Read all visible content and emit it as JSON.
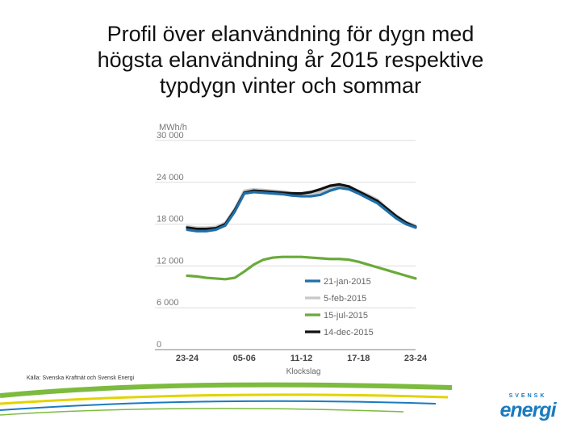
{
  "title_lines": [
    "Profil över elanvändning för dygn med",
    "högsta elanvändning år 2015 respektive",
    "typdygn vinter och sommar"
  ],
  "source_note": "Källa: Svenska Kraftnät och Svensk Energi",
  "logo": {
    "top": "SVENSK",
    "main": "energi"
  },
  "colors": {
    "jan": "#1f6fa8",
    "feb": "#c8c8c8",
    "jul": "#6aaa3a",
    "dec": "#111111",
    "grid": "#dcdcdc",
    "axis_text": "#777777",
    "swoosh_green": "#7cbb3e",
    "swoosh_yellow": "#e3d300",
    "swoosh_blue": "#1a7bbf"
  },
  "chart_data": {
    "type": "line",
    "ylabel": "MWh/h",
    "xlabel": "Klockslag",
    "ylim": [
      0,
      30000
    ],
    "yticks": [
      "30 000",
      "24 000",
      "18 000",
      "12 000",
      "6 000",
      "0"
    ],
    "ytick_values": [
      30000,
      24000,
      18000,
      12000,
      6000,
      0
    ],
    "xticks": [
      "23-24",
      "05-06",
      "11-12",
      "17-18",
      "23-24"
    ],
    "xtick_positions": [
      0,
      6,
      12,
      18,
      24
    ],
    "grid": true,
    "legend_position": "bottom-right",
    "x": [
      0,
      1,
      2,
      3,
      4,
      5,
      6,
      7,
      8,
      9,
      10,
      11,
      12,
      13,
      14,
      15,
      16,
      17,
      18,
      19,
      20,
      21,
      22,
      23,
      24
    ],
    "series": [
      {
        "name": "21-jan-2015",
        "color_key": "jan",
        "values": [
          17200,
          17000,
          17000,
          17200,
          17800,
          19800,
          22400,
          22600,
          22500,
          22400,
          22300,
          22100,
          22000,
          22000,
          22200,
          22800,
          23200,
          23000,
          22400,
          21700,
          21000,
          19900,
          18800,
          18000,
          17500
        ]
      },
      {
        "name": "5-feb-2015",
        "color_key": "feb",
        "values": [
          17700,
          17500,
          17500,
          17600,
          18200,
          20200,
          22800,
          23000,
          22900,
          22800,
          22700,
          22500,
          22400,
          22400,
          22600,
          23100,
          23400,
          23300,
          22800,
          22200,
          21500,
          20300,
          19200,
          18300,
          17800
        ]
      },
      {
        "name": "15-jul-2015",
        "color_key": "jul",
        "values": [
          10600,
          10500,
          10300,
          10200,
          10100,
          10300,
          11200,
          12200,
          12900,
          13200,
          13300,
          13300,
          13300,
          13200,
          13100,
          13000,
          13000,
          12900,
          12600,
          12200,
          11800,
          11400,
          11000,
          10600,
          10200
        ]
      },
      {
        "name": "14-dec-2015",
        "color_key": "dec",
        "values": [
          17500,
          17300,
          17300,
          17400,
          18000,
          20000,
          22500,
          22800,
          22700,
          22600,
          22500,
          22400,
          22400,
          22600,
          23000,
          23500,
          23700,
          23400,
          22700,
          22000,
          21300,
          20200,
          19100,
          18200,
          17600
        ]
      }
    ]
  }
}
